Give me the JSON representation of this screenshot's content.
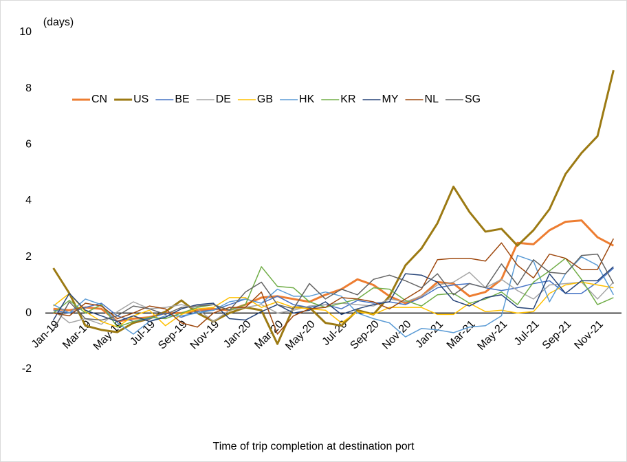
{
  "chart_data": {
    "type": "line",
    "y_label": "(days)",
    "x_label": "Time of trip completion at destination port",
    "categories": [
      "Jan-19",
      null,
      "Mar-19",
      null,
      "May-19",
      null,
      "Jul-19",
      null,
      "Sep-19",
      null,
      "Nov-19",
      null,
      "Jan-20",
      null,
      "Mar-20",
      null,
      "May-20",
      null,
      "Jul-20",
      null,
      "Sep-20",
      null,
      "Nov-20",
      null,
      "Jan-21",
      null,
      "Mar-21",
      null,
      "May-21",
      null,
      "Jul-21",
      null,
      "Sep-21",
      null,
      "Nov-21",
      null
    ],
    "ylim": [
      -2,
      10
    ],
    "yticks": [
      -2,
      0,
      2,
      4,
      6,
      8,
      10
    ],
    "series": [
      {
        "name": "CN",
        "color": "#ed7d31",
        "width": 3,
        "values": [
          0.15,
          0.1,
          0.2,
          0.15,
          -0.3,
          -0.2,
          -0.15,
          0.0,
          0.0,
          0.1,
          0.15,
          0.1,
          0.3,
          0.55,
          0.6,
          0.5,
          0.4,
          0.65,
          0.85,
          1.2,
          1.0,
          0.6,
          0.35,
          0.6,
          1.1,
          1.05,
          0.6,
          0.75,
          1.2,
          2.5,
          2.45,
          2.95,
          3.25,
          3.3,
          2.7,
          2.4
        ]
      },
      {
        "name": "US",
        "color": "#9c7a13",
        "width": 3,
        "values": [
          1.6,
          0.7,
          -0.45,
          -0.6,
          -0.68,
          -0.35,
          -0.2,
          0.05,
          0.45,
          0.0,
          -0.3,
          0.0,
          0.2,
          0.1,
          -1.1,
          0.2,
          0.2,
          -0.35,
          -0.45,
          0.1,
          -0.05,
          0.6,
          1.7,
          2.3,
          3.2,
          4.5,
          3.6,
          2.9,
          3.0,
          2.4,
          2.95,
          3.7,
          4.95,
          5.7,
          6.3,
          8.65
        ]
      },
      {
        "name": "BE",
        "color": "#4472c4",
        "width": 1.5,
        "values": [
          0.1,
          0.0,
          0.2,
          0.35,
          -0.1,
          -0.3,
          -0.2,
          0.0,
          -0.15,
          0.05,
          0.1,
          0.3,
          0.5,
          0.35,
          0.6,
          0.3,
          0.2,
          0.3,
          0.15,
          0.45,
          0.35,
          0.4,
          0.3,
          0.55,
          0.9,
          1.0,
          1.05,
          0.9,
          0.8,
          0.9,
          1.05,
          1.15,
          0.7,
          0.7,
          1.1,
          1.6
        ]
      },
      {
        "name": "DE",
        "color": "#a5a5a5",
        "width": 1.5,
        "values": [
          0.1,
          -0.35,
          -0.2,
          -0.4,
          0.05,
          0.4,
          0.15,
          0.2,
          0.3,
          0.15,
          -0.3,
          0.1,
          0.2,
          0.3,
          0.0,
          0.1,
          0.25,
          0.3,
          0.35,
          0.3,
          0.25,
          0.5,
          0.4,
          0.6,
          1.0,
          1.1,
          1.45,
          0.9,
          1.2,
          0.8,
          0.5,
          1.0,
          1.05,
          1.1,
          0.5,
          1.1
        ]
      },
      {
        "name": "GB",
        "color": "#ffc000",
        "width": 1.5,
        "values": [
          0.25,
          0.7,
          0.05,
          -0.3,
          -0.5,
          -0.1,
          0.1,
          -0.45,
          -0.05,
          0.15,
          0.2,
          0.55,
          0.55,
          0.2,
          0.4,
          0.2,
          0.15,
          0.1,
          -0.35,
          0.05,
          -0.05,
          0.2,
          0.2,
          0.2,
          -0.05,
          -0.05,
          0.35,
          0.05,
          0.1,
          0.0,
          0.05,
          0.7,
          1.0,
          1.1,
          1.0,
          0.9
        ]
      },
      {
        "name": "HK",
        "color": "#5b9bd5",
        "width": 1.5,
        "values": [
          0.3,
          0.0,
          0.5,
          0.3,
          -0.35,
          -0.75,
          -0.3,
          -0.1,
          -0.1,
          0.0,
          0.1,
          0.4,
          0.5,
          0.35,
          0.85,
          0.6,
          0.6,
          0.75,
          0.6,
          0.0,
          -0.2,
          -0.35,
          -0.85,
          -0.55,
          -0.6,
          -0.7,
          -0.5,
          -0.45,
          -0.1,
          2.05,
          1.85,
          0.4,
          1.4,
          2.0,
          1.7,
          0.65
        ]
      },
      {
        "name": "KR",
        "color": "#70ad47",
        "width": 1.5,
        "values": [
          0.0,
          0.45,
          0.0,
          0.3,
          -0.5,
          -0.3,
          -0.15,
          -0.2,
          0.0,
          0.2,
          0.3,
          0.1,
          0.3,
          1.65,
          0.95,
          0.9,
          0.4,
          0.2,
          0.35,
          0.5,
          0.9,
          0.85,
          0.45,
          0.25,
          0.65,
          0.7,
          0.35,
          0.5,
          0.75,
          0.3,
          1.1,
          1.5,
          1.95,
          1.2,
          0.3,
          0.55
        ]
      },
      {
        "name": "MY",
        "color": "#264478",
        "width": 1.5,
        "values": [
          -0.25,
          0.7,
          0.1,
          -0.1,
          -0.3,
          -0.1,
          -0.3,
          -0.15,
          0.15,
          0.3,
          0.35,
          -0.2,
          -0.25,
          0.05,
          0.3,
          0.0,
          0.1,
          0.4,
          -0.05,
          0.15,
          0.3,
          0.4,
          1.4,
          1.35,
          1.1,
          0.45,
          0.25,
          0.55,
          0.65,
          0.2,
          0.15,
          1.4,
          0.7,
          1.15,
          1.15,
          1.65
        ]
      },
      {
        "name": "NL",
        "color": "#9e480e",
        "width": 1.5,
        "values": [
          0.0,
          -0.1,
          0.35,
          0.25,
          -0.2,
          0.0,
          0.25,
          0.15,
          -0.35,
          -0.5,
          0.0,
          0.2,
          0.2,
          0.75,
          -0.75,
          -0.1,
          0.15,
          0.2,
          0.55,
          0.5,
          0.4,
          0.15,
          0.5,
          0.85,
          1.9,
          1.95,
          1.95,
          1.85,
          2.5,
          1.7,
          1.25,
          2.1,
          1.95,
          1.55,
          1.55,
          2.65
        ]
      },
      {
        "name": "SG",
        "color": "#636363",
        "width": 1.5,
        "values": [
          -0.6,
          0.4,
          -0.2,
          -0.25,
          -0.1,
          0.25,
          0.15,
          -0.05,
          0.2,
          0.25,
          0.3,
          0.1,
          0.75,
          1.1,
          0.3,
          0.15,
          1.05,
          0.5,
          0.85,
          0.65,
          1.2,
          1.35,
          1.15,
          0.9,
          1.4,
          0.65,
          1.05,
          0.9,
          1.75,
          1.0,
          1.9,
          1.45,
          1.4,
          2.05,
          2.1,
          1.05
        ]
      }
    ]
  }
}
